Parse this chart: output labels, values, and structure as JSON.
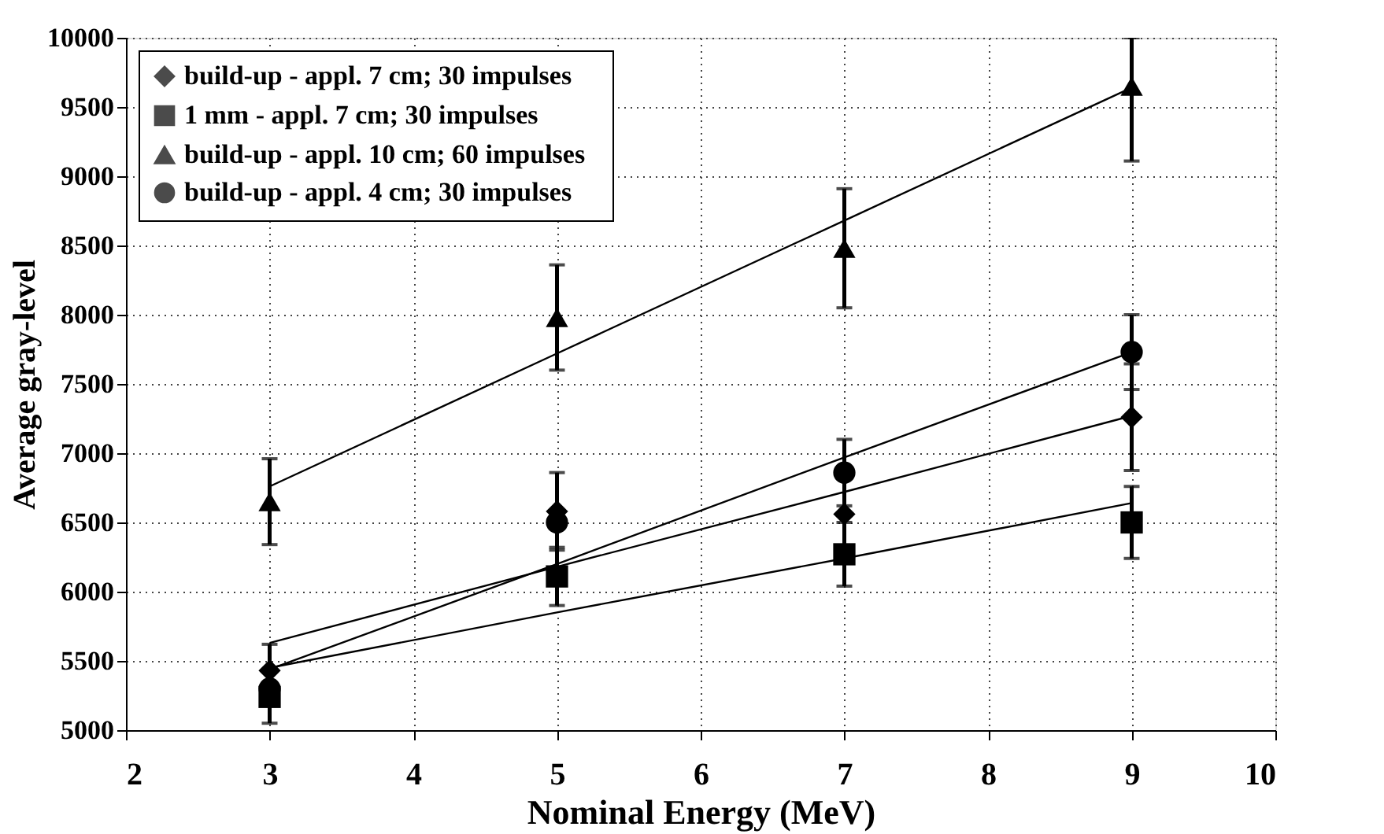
{
  "chart_data": {
    "type": "scatter",
    "xlabel": "Nominal Energy (MeV)",
    "ylabel": "Average gray-level",
    "x": [
      3,
      5,
      7,
      9
    ],
    "series": [
      {
        "name": "build-up - appl. 7  cm;   30 impulses",
        "color": "#000000",
        "marker": "diamond",
        "values": [
          5430,
          6580,
          6560,
          7260
        ],
        "errors": [
          190,
          280,
          260,
          385
        ]
      },
      {
        "name": "1 mm - appl. 7 cm;    30 impulses",
        "color": "#000000",
        "marker": "square",
        "values": [
          5240,
          6110,
          6270,
          6500
        ],
        "errors": [
          190,
          210,
          230,
          260
        ]
      },
      {
        "name": "build-up - appl. 10 cm;   60 impulses",
        "color": "#000000",
        "marker": "triangle",
        "values": [
          6650,
          7980,
          8480,
          9650
        ],
        "errors": [
          310,
          380,
          430,
          [
            9110,
            10000
          ]
        ]
      },
      {
        "name": "build-up - appl. 4 cm;   30 impulses",
        "color": "#000000",
        "marker": "circle",
        "values": [
          5300,
          6500,
          6860,
          7730
        ],
        "errors": [
          null,
          null,
          240,
          270
        ]
      },
      {
        "type": "line",
        "color": "#000000",
        "values": [
          5630,
          6180,
          6720,
          7270
        ]
      },
      {
        "type": "line",
        "color": "#000000",
        "values": [
          5450,
          5850,
          6240,
          6640
        ]
      },
      {
        "type": "line",
        "color": "#000000",
        "values": [
          6760,
          7720,
          8680,
          9640
        ]
      },
      {
        "type": "line",
        "color": "#000000",
        "values": [
          5440,
          6200,
          6970,
          7730
        ]
      }
    ],
    "xlim": [
      2,
      10
    ],
    "xticks": [
      2,
      3,
      4,
      5,
      6,
      7,
      8,
      9,
      10
    ],
    "ylim": [
      5000,
      10000
    ],
    "yticks": [
      5000,
      5500,
      6000,
      6500,
      7000,
      7500,
      8000,
      8500,
      9000,
      9500,
      10000
    ],
    "grid": true,
    "legend": "top left"
  }
}
